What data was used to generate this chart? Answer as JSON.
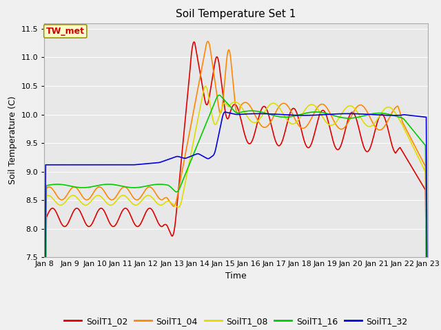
{
  "title": "Soil Temperature Set 1",
  "xlabel": "Time",
  "ylabel": "Soil Temperature (C)",
  "ylim": [
    7.5,
    11.6
  ],
  "xlim": [
    0,
    15
  ],
  "fig_bg_color": "#f0f0f0",
  "plot_bg_color": "#e8e8e8",
  "series_colors": {
    "SoilT1_02": "#dd0000",
    "SoilT1_04": "#ff8800",
    "SoilT1_08": "#dddd00",
    "SoilT1_16": "#00cc00",
    "SoilT1_32": "#0000dd"
  },
  "annotation_text": "TW_met",
  "annotation_color": "#cc0000",
  "annotation_bg": "#ffffcc",
  "annotation_border": "#999900",
  "x_tick_labels": [
    "Jan 8",
    "Jan 9",
    "Jan 10",
    "Jan 11",
    "Jan 12",
    "Jan 13",
    "Jan 14",
    "Jan 15",
    "Jan 16",
    "Jan 17",
    "Jan 18",
    "Jan 19",
    "Jan 20",
    "Jan 21",
    "Jan 22",
    "Jan 23"
  ],
  "y_ticks": [
    7.5,
    8.0,
    8.5,
    9.0,
    9.5,
    10.0,
    10.5,
    11.0,
    11.5
  ],
  "grid_color": "#ffffff",
  "line_width": 1.2,
  "title_fontsize": 11,
  "label_fontsize": 9,
  "tick_fontsize": 8,
  "legend_fontsize": 9
}
